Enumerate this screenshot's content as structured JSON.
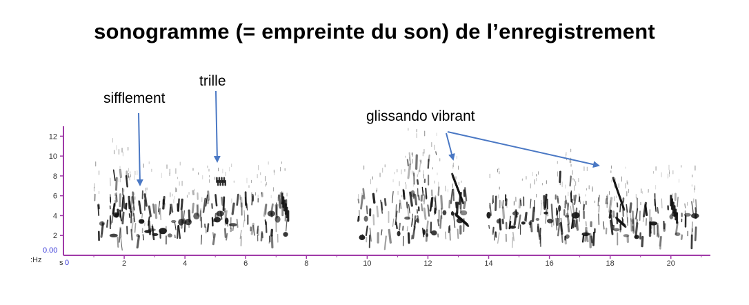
{
  "title": "sonogramme (= empreinte du son) de l’enregistrement",
  "annotations": {
    "sifflement": "sifflement",
    "trille": "trille",
    "glissando": "glissando vibrant"
  },
  "colors": {
    "axis": "#a03aa8",
    "arrow": "#4a78c4",
    "ink": "#111111",
    "zero": "#3b3bd8"
  },
  "chart_data": {
    "type": "heatmap",
    "title": "sonogramme (= empreinte du son) de l’enregistrement",
    "xlabel": "s",
    "ylabel": "kHz",
    "x_unit_label": "s",
    "y_unit_label": ":Hz",
    "zero_label": "0.00",
    "x_origin_label": "0",
    "xlim": [
      0,
      21.3
    ],
    "ylim": [
      0,
      13
    ],
    "x_ticks": [
      "2",
      "4",
      "6",
      "8",
      "10",
      "12",
      "14",
      "16",
      "18",
      "20"
    ],
    "y_ticks": [
      "2",
      "4",
      "6",
      "8",
      "10",
      "12"
    ],
    "grid": false,
    "segments": [
      {
        "name": "segment-1",
        "t_start": 0.9,
        "t_end": 7.5,
        "f_low": 1.5,
        "f_high": 9.0
      },
      {
        "name": "segment-2",
        "t_start": 9.6,
        "t_end": 21.0,
        "f_low": 1.5,
        "f_high": 12.5
      }
    ],
    "annotations": [
      {
        "label": "sifflement",
        "arrow_to": [
          2.55,
          6.6
        ]
      },
      {
        "label": "trille",
        "arrow_to": [
          5.1,
          8.2
        ]
      },
      {
        "label": "glissando vibrant",
        "arrow_to": [
          12.95,
          8.3
        ]
      },
      {
        "label": "glissando vibrant",
        "arrow_to": [
          18.0,
          7.8
        ]
      }
    ]
  }
}
